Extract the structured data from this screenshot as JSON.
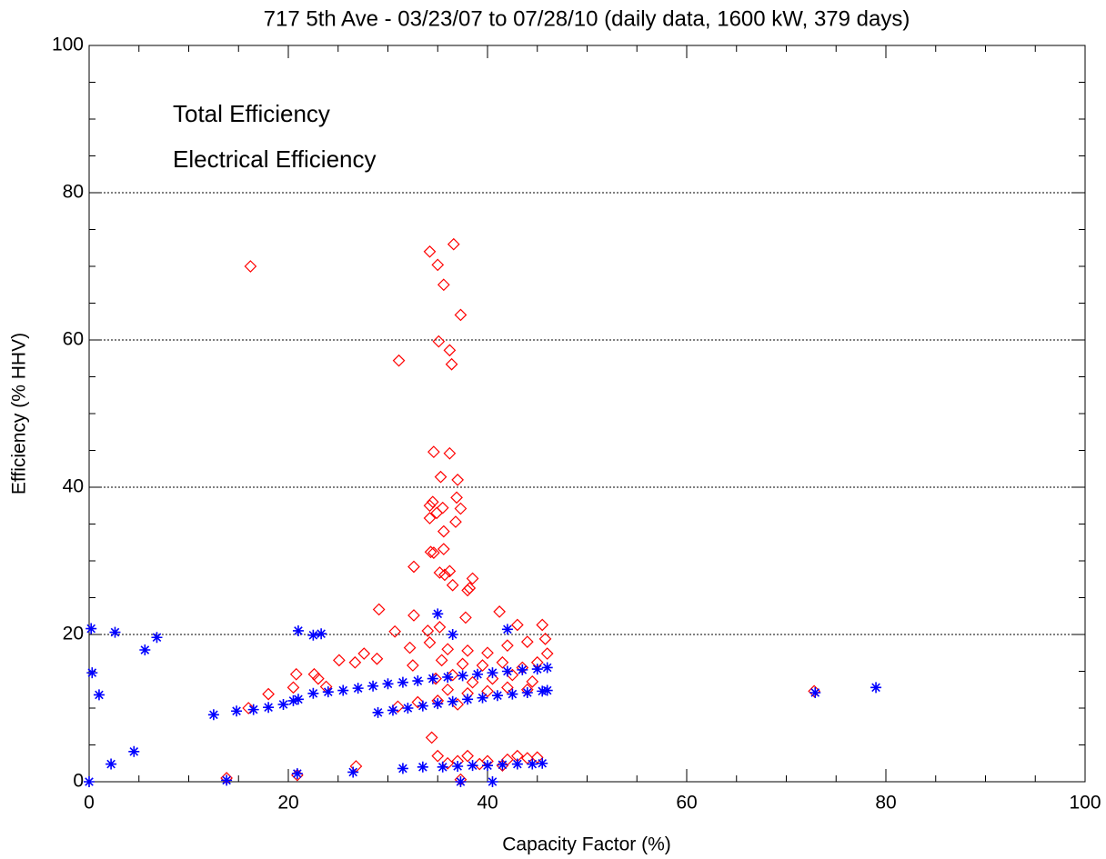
{
  "chart_data": {
    "type": "scatter",
    "title": "717 5th Ave - 03/23/07 to 07/28/10 (daily data, 1600 kW, 379 days)",
    "x_label": "Capacity Factor (%)",
    "y_label": "Efficiency (% HHV)",
    "xlim": [
      0,
      100
    ],
    "ylim": [
      0,
      100
    ],
    "xticks": [
      0,
      20,
      40,
      60,
      80,
      100
    ],
    "yticks": [
      0,
      20,
      40,
      60,
      80,
      100
    ],
    "grid": true,
    "legend": "upper left",
    "series": [
      {
        "name": "Total Efficiency",
        "color": "#ff0000",
        "marker": "diamond",
        "x": [
          16.2,
          34.2,
          36.6,
          35,
          35.6,
          37.3,
          31.1,
          35.1,
          36.2,
          36.4,
          34.6,
          36.2,
          37,
          35.3,
          34.5,
          34.2,
          35.5,
          36.9,
          37.3,
          34.2,
          34.9,
          36.8,
          35.6,
          34.3,
          34.6,
          35.6,
          32.6,
          35.7,
          35.2,
          36.2,
          36.5,
          38.5,
          38.2,
          38,
          29.1,
          32.6,
          41.2,
          45.5,
          30.7,
          34,
          35.2,
          37.8,
          43,
          27.6,
          25.1,
          26.7,
          28.9,
          32.2,
          34.2,
          36,
          38,
          40,
          42,
          44,
          46,
          45.8,
          35.4,
          37.5,
          39.5,
          41.5,
          43.5,
          45,
          20.8,
          22.6,
          23,
          20.5,
          23.8,
          18,
          16,
          32.5,
          34.8,
          36.5,
          38.5,
          40.5,
          42.5,
          44.5,
          36,
          38,
          40,
          42,
          44,
          31,
          33,
          35,
          37,
          72.8,
          34.4,
          35,
          36,
          37,
          38,
          40,
          42,
          43,
          44,
          45,
          26.8,
          13.8,
          20.9,
          37.3,
          39.2,
          41.5
        ],
        "values": [
          70,
          72,
          73,
          70.2,
          67.5,
          63.4,
          57.2,
          59.8,
          58.6,
          56.7,
          44.8,
          44.6,
          41,
          41.4,
          38,
          37.5,
          37.2,
          38.6,
          37.1,
          35.8,
          36.5,
          35.3,
          34,
          31.2,
          31.1,
          31.6,
          29.2,
          28.1,
          28.4,
          28.6,
          26.7,
          27.6,
          26.3,
          26,
          23.4,
          22.6,
          23.1,
          21.3,
          20.4,
          20.5,
          21,
          22.3,
          21.3,
          17.4,
          16.5,
          16.2,
          16.7,
          18.2,
          18.9,
          18,
          17.8,
          17.5,
          18.5,
          19,
          17.4,
          19.4,
          16.5,
          16,
          15.8,
          16.2,
          15.5,
          16.2,
          14.6,
          14.6,
          14,
          12.8,
          12.9,
          11.9,
          10,
          15.8,
          14,
          14.5,
          13.5,
          14,
          14.5,
          13.6,
          12.5,
          12,
          12.3,
          12.8,
          12.5,
          10.2,
          10.8,
          11,
          10.5,
          12.3,
          6,
          3.5,
          2.5,
          2.8,
          3.5,
          2.8,
          3,
          3.5,
          3.2,
          3.3,
          2.1,
          0.5,
          0.9,
          0.3,
          2.4,
          2.2
        ]
      },
      {
        "name": "Electrical Efficiency",
        "color": "#0000ff",
        "marker": "asterisk",
        "x": [
          0.2,
          2.6,
          6.8,
          5.6,
          0.3,
          1,
          21,
          22.5,
          23.3,
          36.5,
          42,
          35,
          12.5,
          14.8,
          16.5,
          18,
          19.5,
          20.5,
          21,
          22.5,
          24,
          25.5,
          27,
          28.5,
          30,
          31.5,
          33,
          34.5,
          36,
          37.5,
          39,
          40.5,
          42,
          43.5,
          45,
          46,
          29,
          30.5,
          32,
          33.5,
          35,
          36.5,
          38,
          39.5,
          41,
          42.5,
          44,
          45.5,
          46,
          72.9,
          79,
          2.2,
          4.5,
          13.8,
          20.9,
          26.5,
          31.5,
          33.5,
          35.5,
          37,
          38.5,
          40,
          41.5,
          43,
          44.5,
          45.5,
          37.3,
          40.5,
          0
        ],
        "values": [
          20.8,
          20.3,
          19.6,
          17.9,
          14.8,
          11.8,
          20.5,
          19.9,
          20.1,
          20,
          20.7,
          22.8,
          9.1,
          9.6,
          9.8,
          10.1,
          10.5,
          11,
          11.2,
          12,
          12.2,
          12.4,
          12.7,
          13,
          13.3,
          13.5,
          13.7,
          14,
          14.2,
          14.4,
          14.6,
          14.8,
          15,
          15.2,
          15.3,
          15.5,
          9.4,
          9.7,
          10,
          10.3,
          10.6,
          10.9,
          11.2,
          11.4,
          11.7,
          11.9,
          12.1,
          12.3,
          12.4,
          12.1,
          12.8,
          2.4,
          4.1,
          0.2,
          1.1,
          1.3,
          1.8,
          2,
          2,
          2.1,
          2.2,
          2.2,
          2.3,
          2.4,
          2.4,
          2.5,
          0,
          0,
          0
        ]
      }
    ]
  }
}
